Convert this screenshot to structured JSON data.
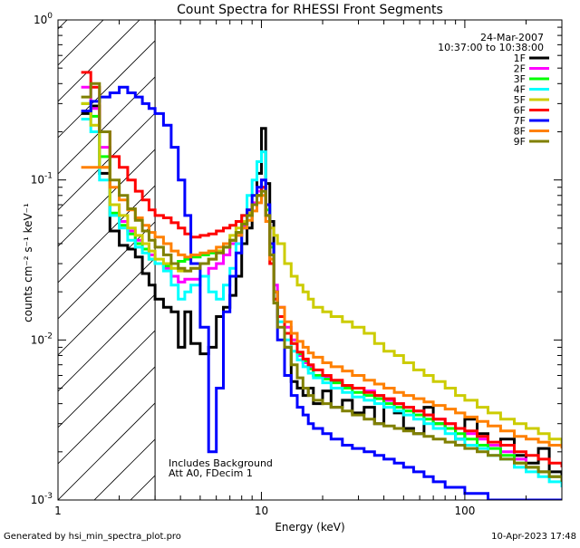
{
  "chart_data": {
    "type": "line",
    "title": "Count Spectra for RHESSI Front Segments",
    "xlabel": "Energy (keV)",
    "ylabel": "counts cm⁻² s⁻¹ keV⁻¹",
    "xscale": "log",
    "yscale": "log",
    "xlim": [
      1,
      300
    ],
    "ylim": [
      0.001,
      1
    ],
    "x_ticks": [
      {
        "value": 1,
        "label": "1"
      },
      {
        "value": 10,
        "label": "10"
      },
      {
        "value": 100,
        "label": "100"
      }
    ],
    "y_ticks": [
      {
        "value": 1,
        "base": "10",
        "exp": "0"
      },
      {
        "value": 0.1,
        "base": "10",
        "exp": "-1"
      },
      {
        "value": 0.01,
        "base": "10",
        "exp": "-2"
      },
      {
        "value": 0.001,
        "base": "10",
        "exp": "-3"
      }
    ],
    "hatched_region": {
      "x_from": 1,
      "x_to": 3
    },
    "date": "24-Mar-2007",
    "time_range": "10:37:00 to 10:38:00",
    "annotations": [
      "Includes Background",
      "Att A0, FDecim 1"
    ],
    "legend_position": "top-right",
    "series": [
      {
        "name": "1F",
        "color": "#000000",
        "x": [
          1.3,
          1.45,
          1.6,
          1.8,
          2.0,
          2.2,
          2.4,
          2.6,
          2.8,
          3.0,
          3.3,
          3.6,
          3.9,
          4.2,
          4.5,
          5.0,
          5.5,
          6.0,
          6.5,
          7.0,
          7.5,
          8.0,
          8.5,
          9.0,
          9.5,
          10.0,
          10.5,
          11.0,
          11.5,
          12.0,
          13.0,
          14.0,
          15.0,
          16.0,
          17.0,
          18.0,
          20.0,
          22.0,
          25.0,
          28.0,
          32.0,
          36.0,
          40.0,
          45.0,
          50.0,
          56.0,
          63.0,
          70.0,
          80.0,
          90.0,
          100.0,
          115.0,
          130.0,
          150.0,
          175.0,
          200.0,
          230.0,
          260.0,
          300.0
        ],
        "values": [
          0.26,
          0.29,
          0.11,
          0.048,
          0.039,
          0.037,
          0.033,
          0.026,
          0.022,
          0.018,
          0.016,
          0.015,
          0.009,
          0.015,
          0.0095,
          0.0082,
          0.009,
          0.014,
          0.016,
          0.019,
          0.025,
          0.04,
          0.05,
          0.07,
          0.11,
          0.21,
          0.095,
          0.055,
          0.02,
          0.014,
          0.009,
          0.0055,
          0.005,
          0.0045,
          0.005,
          0.004,
          0.0048,
          0.0038,
          0.0042,
          0.0035,
          0.0038,
          0.003,
          0.0042,
          0.0035,
          0.0028,
          0.0026,
          0.0038,
          0.003,
          0.0028,
          0.0024,
          0.0032,
          0.0026,
          0.0022,
          0.0024,
          0.0019,
          0.0017,
          0.0021,
          0.0015,
          0.0012
        ]
      },
      {
        "name": "2F",
        "color": "#ff00ff",
        "x": [
          1.3,
          1.45,
          1.6,
          1.8,
          2.0,
          2.2,
          2.4,
          2.6,
          2.8,
          3.0,
          3.3,
          3.6,
          3.9,
          4.2,
          4.5,
          5.0,
          5.5,
          6.0,
          6.5,
          7.0,
          7.5,
          8.0,
          8.5,
          9.0,
          9.5,
          10.0,
          10.5,
          11.0,
          11.5,
          12.0,
          13.0,
          14.0,
          15.0,
          16.0,
          17.0,
          18.0,
          20.0,
          22.0,
          25.0,
          28.0,
          32.0,
          36.0,
          40.0,
          45.0,
          50.0,
          56.0,
          63.0,
          70.0,
          80.0,
          90.0,
          100.0,
          115.0,
          130.0,
          150.0,
          175.0,
          200.0,
          230.0,
          260.0,
          300.0
        ],
        "values": [
          0.38,
          0.28,
          0.16,
          0.07,
          0.055,
          0.048,
          0.042,
          0.04,
          0.034,
          0.03,
          0.028,
          0.025,
          0.023,
          0.024,
          0.024,
          0.025,
          0.028,
          0.03,
          0.034,
          0.04,
          0.045,
          0.052,
          0.06,
          0.072,
          0.085,
          0.1,
          0.07,
          0.04,
          0.022,
          0.016,
          0.012,
          0.01,
          0.008,
          0.0072,
          0.0068,
          0.006,
          0.0058,
          0.0055,
          0.0052,
          0.005,
          0.0048,
          0.0045,
          0.0042,
          0.004,
          0.0038,
          0.0036,
          0.0034,
          0.0032,
          0.003,
          0.0028,
          0.0026,
          0.0024,
          0.0022,
          0.002,
          0.0018,
          0.0016,
          0.0015,
          0.0014,
          0.0013
        ]
      },
      {
        "name": "3F",
        "color": "#00ff00",
        "x": [
          1.3,
          1.45,
          1.6,
          1.8,
          2.0,
          2.2,
          2.4,
          2.6,
          2.8,
          3.0,
          3.3,
          3.6,
          3.9,
          4.2,
          4.5,
          5.0,
          5.5,
          6.0,
          6.5,
          7.0,
          7.5,
          8.0,
          8.5,
          9.0,
          9.5,
          10.0,
          10.5,
          11.0,
          11.5,
          12.0,
          13.0,
          14.0,
          15.0,
          16.0,
          17.0,
          18.0,
          20.0,
          22.0,
          25.0,
          28.0,
          32.0,
          36.0,
          40.0,
          45.0,
          50.0,
          56.0,
          63.0,
          70.0,
          80.0,
          90.0,
          100.0,
          115.0,
          130.0,
          150.0,
          175.0,
          200.0,
          230.0,
          260.0,
          300.0
        ],
        "values": [
          0.3,
          0.25,
          0.14,
          0.062,
          0.052,
          0.046,
          0.04,
          0.037,
          0.032,
          0.03,
          0.029,
          0.03,
          0.031,
          0.032,
          0.033,
          0.034,
          0.035,
          0.036,
          0.038,
          0.042,
          0.047,
          0.053,
          0.06,
          0.07,
          0.08,
          0.09,
          0.065,
          0.038,
          0.02,
          0.014,
          0.011,
          0.0095,
          0.0082,
          0.0074,
          0.0066,
          0.006,
          0.0057,
          0.0054,
          0.005,
          0.0047,
          0.0045,
          0.0043,
          0.004,
          0.0038,
          0.0036,
          0.0034,
          0.0032,
          0.003,
          0.0028,
          0.0026,
          0.0024,
          0.0022,
          0.0021,
          0.0019,
          0.0017,
          0.0016,
          0.0015,
          0.0014,
          0.0013
        ]
      },
      {
        "name": "4F",
        "color": "#00ffff",
        "x": [
          1.3,
          1.45,
          1.6,
          1.8,
          2.0,
          2.2,
          2.4,
          2.6,
          2.8,
          3.0,
          3.3,
          3.6,
          3.9,
          4.2,
          4.5,
          5.0,
          5.5,
          6.0,
          6.5,
          7.0,
          7.5,
          8.0,
          8.5,
          9.0,
          9.5,
          10.0,
          10.5,
          11.0,
          11.5,
          12.0,
          13.0,
          14.0,
          15.0,
          16.0,
          17.0,
          18.0,
          20.0,
          22.0,
          25.0,
          28.0,
          32.0,
          36.0,
          40.0,
          45.0,
          50.0,
          56.0,
          63.0,
          70.0,
          80.0,
          90.0,
          100.0,
          115.0,
          130.0,
          150.0,
          175.0,
          200.0,
          230.0,
          260.0,
          300.0
        ],
        "values": [
          0.24,
          0.2,
          0.1,
          0.06,
          0.05,
          0.042,
          0.038,
          0.035,
          0.032,
          0.03,
          0.027,
          0.022,
          0.018,
          0.02,
          0.022,
          0.025,
          0.02,
          0.018,
          0.022,
          0.028,
          0.04,
          0.06,
          0.08,
          0.1,
          0.13,
          0.15,
          0.07,
          0.034,
          0.018,
          0.013,
          0.01,
          0.0085,
          0.0075,
          0.0068,
          0.0062,
          0.0058,
          0.0054,
          0.005,
          0.0047,
          0.0044,
          0.0042,
          0.004,
          0.0038,
          0.0036,
          0.0034,
          0.0032,
          0.003,
          0.0028,
          0.0026,
          0.0024,
          0.0022,
          0.0021,
          0.0019,
          0.0018,
          0.0016,
          0.0015,
          0.0014,
          0.0013,
          0.0012
        ]
      },
      {
        "name": "5F",
        "color": "#cccc00",
        "x": [
          1.3,
          1.45,
          1.6,
          1.8,
          2.0,
          2.2,
          2.4,
          2.6,
          2.8,
          3.0,
          3.3,
          3.6,
          3.9,
          4.2,
          4.5,
          5.0,
          5.5,
          6.0,
          6.5,
          7.0,
          7.5,
          8.0,
          8.5,
          9.0,
          9.5,
          10.0,
          10.5,
          11.0,
          11.5,
          12.0,
          13.0,
          14.0,
          15.0,
          16.0,
          17.0,
          18.0,
          20.0,
          22.0,
          25.0,
          28.0,
          32.0,
          36.0,
          40.0,
          45.0,
          50.0,
          56.0,
          63.0,
          70.0,
          80.0,
          90.0,
          100.0,
          115.0,
          130.0,
          150.0,
          175.0,
          200.0,
          230.0,
          260.0,
          300.0
        ],
        "values": [
          0.3,
          0.22,
          0.12,
          0.07,
          0.06,
          0.05,
          0.045,
          0.04,
          0.036,
          0.032,
          0.03,
          0.028,
          0.027,
          0.027,
          0.028,
          0.03,
          0.032,
          0.036,
          0.04,
          0.045,
          0.05,
          0.055,
          0.062,
          0.07,
          0.08,
          0.09,
          0.06,
          0.05,
          0.045,
          0.04,
          0.03,
          0.025,
          0.022,
          0.02,
          0.018,
          0.016,
          0.015,
          0.014,
          0.013,
          0.012,
          0.011,
          0.0095,
          0.0085,
          0.008,
          0.0072,
          0.0065,
          0.006,
          0.0055,
          0.005,
          0.0045,
          0.0042,
          0.0038,
          0.0035,
          0.0032,
          0.003,
          0.0028,
          0.0026,
          0.0024,
          0.0022
        ]
      },
      {
        "name": "6F",
        "color": "#ff0000",
        "x": [
          1.3,
          1.45,
          1.6,
          1.8,
          2.0,
          2.2,
          2.4,
          2.6,
          2.8,
          3.0,
          3.3,
          3.6,
          3.9,
          4.2,
          4.5,
          5.0,
          5.5,
          6.0,
          6.5,
          7.0,
          7.5,
          8.0,
          8.5,
          9.0,
          9.5,
          10.0,
          10.5,
          11.0,
          11.5,
          12.0,
          13.0,
          14.0,
          15.0,
          16.0,
          17.0,
          18.0,
          20.0,
          22.0,
          25.0,
          28.0,
          32.0,
          36.0,
          40.0,
          45.0,
          50.0,
          56.0,
          63.0,
          70.0,
          80.0,
          90.0,
          100.0,
          115.0,
          130.0,
          150.0,
          175.0,
          200.0,
          230.0,
          260.0,
          300.0
        ],
        "values": [
          0.47,
          0.38,
          0.2,
          0.14,
          0.12,
          0.1,
          0.085,
          0.075,
          0.065,
          0.06,
          0.058,
          0.054,
          0.05,
          0.046,
          0.044,
          0.045,
          0.046,
          0.048,
          0.05,
          0.052,
          0.055,
          0.06,
          0.065,
          0.07,
          0.08,
          0.09,
          0.06,
          0.03,
          0.018,
          0.014,
          0.011,
          0.0095,
          0.0084,
          0.0076,
          0.007,
          0.0065,
          0.006,
          0.0056,
          0.0052,
          0.005,
          0.0047,
          0.0045,
          0.0043,
          0.004,
          0.0038,
          0.0036,
          0.0034,
          0.0032,
          0.003,
          0.0028,
          0.0027,
          0.0025,
          0.0023,
          0.0022,
          0.002,
          0.0019,
          0.0018,
          0.0017,
          0.0016
        ]
      },
      {
        "name": "7F",
        "color": "#0000ff",
        "x": [
          1.3,
          1.45,
          1.6,
          1.8,
          2.0,
          2.2,
          2.4,
          2.6,
          2.8,
          3.0,
          3.3,
          3.6,
          3.9,
          4.2,
          4.5,
          5.0,
          5.5,
          6.0,
          6.5,
          7.0,
          7.5,
          8.0,
          8.5,
          9.0,
          9.5,
          10.0,
          10.5,
          11.0,
          11.5,
          12.0,
          13.0,
          14.0,
          15.0,
          16.0,
          17.0,
          18.0,
          20.0,
          22.0,
          25.0,
          28.0,
          32.0,
          36.0,
          40.0,
          45.0,
          50.0,
          56.0,
          63.0,
          70.0,
          80.0,
          90.0,
          100.0,
          115.0,
          130.0,
          150.0,
          175.0,
          200.0,
          230.0,
          260.0,
          300.0
        ],
        "values": [
          0.27,
          0.31,
          0.33,
          0.35,
          0.38,
          0.35,
          0.33,
          0.3,
          0.28,
          0.26,
          0.22,
          0.16,
          0.1,
          0.06,
          0.03,
          0.012,
          0.002,
          0.005,
          0.015,
          0.025,
          0.035,
          0.05,
          0.065,
          0.08,
          0.09,
          0.1,
          0.07,
          0.04,
          0.02,
          0.01,
          0.006,
          0.0045,
          0.0038,
          0.0034,
          0.003,
          0.0028,
          0.0026,
          0.0024,
          0.0022,
          0.0021,
          0.002,
          0.0019,
          0.0018,
          0.0017,
          0.0016,
          0.0015,
          0.0014,
          0.0013,
          0.0012,
          0.0012,
          0.0011,
          0.0011,
          0.001,
          0.001,
          0.001,
          0.001,
          0.001,
          0.001,
          0.001
        ]
      },
      {
        "name": "8F",
        "color": "#ff8000",
        "x": [
          1.3,
          1.45,
          1.6,
          1.8,
          2.0,
          2.2,
          2.4,
          2.6,
          2.8,
          3.0,
          3.3,
          3.6,
          3.9,
          4.2,
          4.5,
          5.0,
          5.5,
          6.0,
          6.5,
          7.0,
          7.5,
          8.0,
          8.5,
          9.0,
          9.5,
          10.0,
          10.5,
          11.0,
          11.5,
          12.0,
          13.0,
          14.0,
          15.0,
          16.0,
          17.0,
          18.0,
          20.0,
          22.0,
          25.0,
          28.0,
          32.0,
          36.0,
          40.0,
          45.0,
          50.0,
          56.0,
          63.0,
          70.0,
          80.0,
          90.0,
          100.0,
          115.0,
          130.0,
          150.0,
          175.0,
          200.0,
          230.0,
          260.0,
          300.0
        ],
        "values": [
          0.12,
          0.12,
          0.12,
          0.09,
          0.075,
          0.065,
          0.058,
          0.052,
          0.047,
          0.044,
          0.04,
          0.036,
          0.034,
          0.033,
          0.034,
          0.035,
          0.036,
          0.038,
          0.04,
          0.042,
          0.045,
          0.05,
          0.056,
          0.064,
          0.072,
          0.08,
          0.055,
          0.032,
          0.02,
          0.016,
          0.013,
          0.011,
          0.0098,
          0.009,
          0.0083,
          0.0078,
          0.0072,
          0.0068,
          0.0064,
          0.006,
          0.0056,
          0.0053,
          0.005,
          0.0047,
          0.0045,
          0.0043,
          0.0041,
          0.0039,
          0.0037,
          0.0035,
          0.0033,
          0.0031,
          0.0029,
          0.0027,
          0.0025,
          0.0024,
          0.0023,
          0.0022,
          0.0021
        ]
      },
      {
        "name": "9F",
        "color": "#808000",
        "x": [
          1.3,
          1.45,
          1.6,
          1.8,
          2.0,
          2.2,
          2.4,
          2.6,
          2.8,
          3.0,
          3.3,
          3.6,
          3.9,
          4.2,
          4.5,
          5.0,
          5.5,
          6.0,
          6.5,
          7.0,
          7.5,
          8.0,
          8.5,
          9.0,
          9.5,
          10.0,
          10.5,
          11.0,
          11.5,
          12.0,
          13.0,
          14.0,
          15.0,
          16.0,
          17.0,
          18.0,
          20.0,
          22.0,
          25.0,
          28.0,
          32.0,
          36.0,
          40.0,
          45.0,
          50.0,
          56.0,
          63.0,
          70.0,
          80.0,
          90.0,
          100.0,
          115.0,
          130.0,
          150.0,
          175.0,
          200.0,
          230.0,
          260.0,
          300.0
        ],
        "values": [
          0.33,
          0.4,
          0.2,
          0.1,
          0.08,
          0.066,
          0.056,
          0.048,
          0.042,
          0.038,
          0.034,
          0.03,
          0.028,
          0.027,
          0.028,
          0.03,
          0.032,
          0.035,
          0.038,
          0.042,
          0.047,
          0.053,
          0.06,
          0.07,
          0.08,
          0.085,
          0.06,
          0.034,
          0.017,
          0.012,
          0.009,
          0.007,
          0.0058,
          0.005,
          0.0045,
          0.0042,
          0.004,
          0.0038,
          0.0036,
          0.0034,
          0.0032,
          0.003,
          0.0029,
          0.0028,
          0.0027,
          0.0026,
          0.0025,
          0.0024,
          0.0023,
          0.0022,
          0.0021,
          0.002,
          0.0019,
          0.0018,
          0.0017,
          0.0016,
          0.0015,
          0.0014,
          0.0013
        ]
      }
    ]
  },
  "footer": {
    "generated_by": "Generated by hsi_min_spectra_plot.pro",
    "timestamp": "10-Apr-2023 17:48"
  }
}
